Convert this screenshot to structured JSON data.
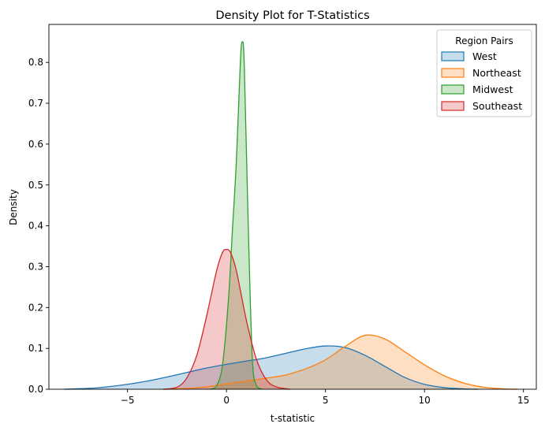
{
  "chart_data": {
    "type": "area",
    "title": "Density Plot for T-Statistics",
    "xlabel": "t-statistic",
    "ylabel": "Density",
    "xlim": [
      -8.97,
      15.65
    ],
    "ylim": [
      0,
      0.893
    ],
    "x_ticks": [
      -5,
      0,
      5,
      10,
      15
    ],
    "x_tick_labels": [
      "−5",
      "0",
      "5",
      "10",
      "15"
    ],
    "y_ticks": [
      0.0,
      0.1,
      0.2,
      0.3,
      0.4,
      0.5,
      0.6,
      0.7,
      0.8
    ],
    "y_tick_labels": [
      "0.0",
      "0.1",
      "0.2",
      "0.3",
      "0.4",
      "0.5",
      "0.6",
      "0.7",
      "0.8"
    ],
    "grid": false,
    "legend": {
      "title": "Region Pairs",
      "placement": "top-right"
    },
    "series": [
      {
        "name": "West",
        "color": "#1f77b4",
        "x": [
          -8.2,
          -7,
          -6,
          -5,
          -4,
          -3,
          -2,
          -1,
          0,
          1,
          2,
          3,
          4,
          5,
          6,
          7,
          8,
          9,
          10,
          11,
          12,
          12.7
        ],
        "y": [
          0.0,
          0.002,
          0.006,
          0.012,
          0.02,
          0.03,
          0.041,
          0.052,
          0.061,
          0.069,
          0.077,
          0.088,
          0.099,
          0.106,
          0.102,
          0.083,
          0.056,
          0.029,
          0.012,
          0.004,
          0.001,
          0.0
        ]
      },
      {
        "name": "Northeast",
        "color": "#ff7f0e",
        "x": [
          -3.2,
          -2,
          -1,
          0,
          1,
          2,
          3,
          4,
          5,
          6,
          7,
          8,
          9,
          10,
          11,
          12,
          13,
          14,
          14.7
        ],
        "y": [
          0.0,
          0.002,
          0.006,
          0.013,
          0.02,
          0.027,
          0.035,
          0.05,
          0.072,
          0.105,
          0.132,
          0.123,
          0.092,
          0.06,
          0.033,
          0.015,
          0.005,
          0.001,
          0.0
        ]
      },
      {
        "name": "Midwest",
        "color": "#2ca02c",
        "x": [
          -0.8,
          -0.5,
          -0.2,
          0.1,
          0.3,
          0.5,
          0.7,
          0.8,
          0.9,
          1.1,
          1.3,
          1.5,
          1.8
        ],
        "y": [
          0.0,
          0.008,
          0.06,
          0.22,
          0.39,
          0.56,
          0.8,
          0.85,
          0.79,
          0.4,
          0.08,
          0.01,
          0.0
        ]
      },
      {
        "name": "Southeast",
        "color": "#d62728",
        "x": [
          -3.2,
          -2.5,
          -2,
          -1.5,
          -1,
          -0.5,
          -0.2,
          0,
          0.2,
          0.5,
          1,
          1.5,
          2,
          2.5,
          3.2
        ],
        "y": [
          0.0,
          0.005,
          0.028,
          0.083,
          0.18,
          0.29,
          0.335,
          0.342,
          0.335,
          0.29,
          0.17,
          0.075,
          0.024,
          0.006,
          0.0
        ]
      }
    ]
  }
}
